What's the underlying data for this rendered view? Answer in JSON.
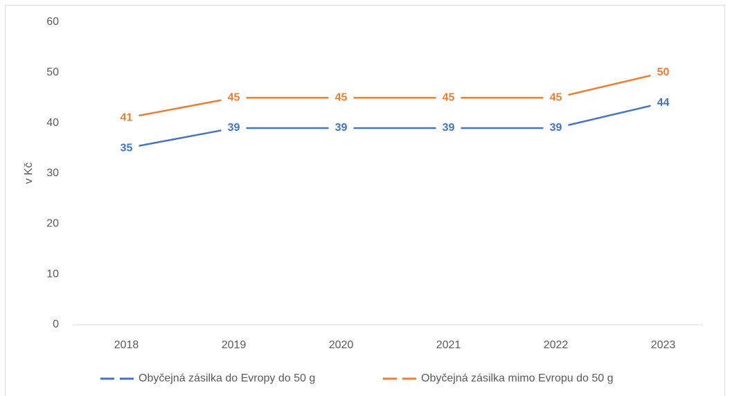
{
  "chart_data": {
    "type": "line",
    "y_label": "v Kč",
    "categories": [
      "2018",
      "2019",
      "2020",
      "2021",
      "2022",
      "2023"
    ],
    "series": [
      {
        "name": "Obyčejná zásilka do Evropy do 50 g",
        "color": "#4472c4",
        "values": [
          35,
          39,
          39,
          39,
          39,
          44
        ]
      },
      {
        "name": "Obyčejná zásilka mimo Evropu do 50 g",
        "color": "#ed7d31",
        "values": [
          41,
          45,
          45,
          45,
          45,
          50
        ]
      }
    ],
    "ylim": [
      0,
      60
    ],
    "yticks": [
      0,
      10,
      20,
      30,
      40,
      50,
      60
    ],
    "grid": false,
    "legend": "bottom"
  }
}
